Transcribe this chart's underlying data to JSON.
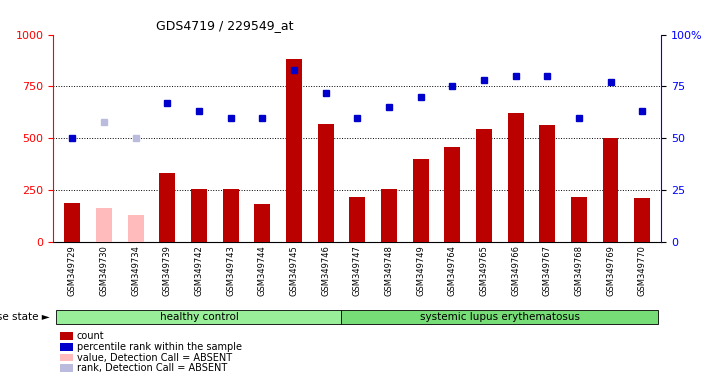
{
  "title": "GDS4719 / 229549_at",
  "samples": [
    "GSM349729",
    "GSM349730",
    "GSM349734",
    "GSM349739",
    "GSM349742",
    "GSM349743",
    "GSM349744",
    "GSM349745",
    "GSM349746",
    "GSM349747",
    "GSM349748",
    "GSM349749",
    "GSM349764",
    "GSM349765",
    "GSM349766",
    "GSM349767",
    "GSM349768",
    "GSM349769",
    "GSM349770"
  ],
  "count_values": [
    190,
    null,
    null,
    330,
    255,
    255,
    185,
    880,
    570,
    215,
    255,
    400,
    460,
    545,
    620,
    565,
    215,
    500,
    210
  ],
  "count_absent": [
    null,
    165,
    130,
    null,
    null,
    null,
    null,
    null,
    null,
    null,
    null,
    null,
    null,
    null,
    null,
    null,
    null,
    null,
    null
  ],
  "percentile_values": [
    50,
    null,
    null,
    67,
    63,
    60,
    60,
    83,
    72,
    60,
    65,
    70,
    75,
    78,
    80,
    80,
    60,
    77,
    63
  ],
  "percentile_absent": [
    null,
    58,
    50,
    null,
    null,
    null,
    null,
    null,
    null,
    null,
    null,
    null,
    null,
    null,
    null,
    null,
    null,
    null,
    null
  ],
  "n_healthy": 9,
  "n_lupus": 10,
  "ylim_left": [
    0,
    1000
  ],
  "ylim_right": [
    0,
    100
  ],
  "yticks_left": [
    0,
    250,
    500,
    750,
    1000
  ],
  "yticks_right": [
    0,
    25,
    50,
    75,
    100
  ],
  "ytick_right_labels": [
    "0",
    "25",
    "50",
    "75",
    "100%"
  ],
  "bar_color_present": "#bb0000",
  "bar_color_absent": "#ffbbbb",
  "dot_color_present": "#0000cc",
  "dot_color_absent": "#bbbbdd",
  "healthy_color": "#99ee99",
  "lupus_color": "#77dd77",
  "disease_state_label": "disease state",
  "healthy_label": "healthy control",
  "lupus_label": "systemic lupus erythematosus",
  "xtick_bg_color": "#cccccc",
  "legend_items": [
    {
      "label": "count",
      "color": "#bb0000"
    },
    {
      "label": "percentile rank within the sample",
      "color": "#0000cc"
    },
    {
      "label": "value, Detection Call = ABSENT",
      "color": "#ffbbbb"
    },
    {
      "label": "rank, Detection Call = ABSENT",
      "color": "#bbbbdd"
    }
  ]
}
